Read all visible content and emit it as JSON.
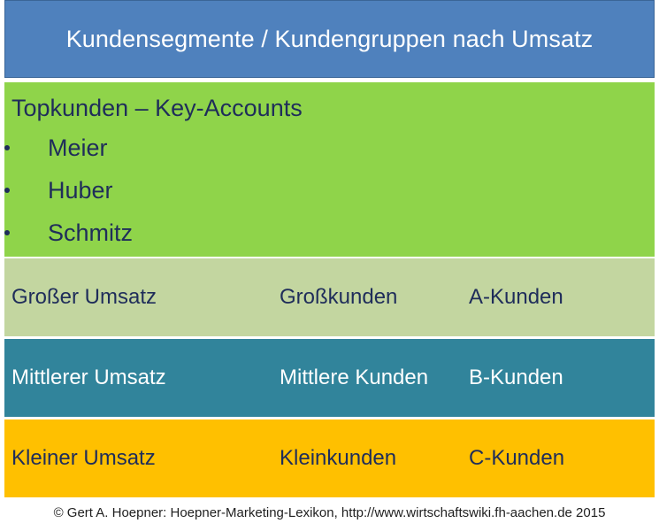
{
  "header": {
    "title": "Kundensegmente / Kundengruppen nach Umsatz"
  },
  "top_segment": {
    "title": "Topkunden – Key-Accounts",
    "items": [
      "Meier",
      "Huber",
      "Schmitz"
    ]
  },
  "rows": [
    {
      "revenue": "Großer Umsatz",
      "group": "Großkunden",
      "class": "A-Kunden"
    },
    {
      "revenue": "Mittlerer Umsatz",
      "group": "Mittlere Kunden",
      "class": "B-Kunden"
    },
    {
      "revenue": "Kleiner Umsatz",
      "group": "Kleinkunden",
      "class": "C-Kunden"
    }
  ],
  "footer": {
    "copyright": "© Gert A. Hoepner: Hoepner-Marketing-Lexikon, http://www.wirtschaftswiki.fh-aachen.de 2015"
  },
  "colors": {
    "header": "#4f81bd",
    "top_segment": "#8fd44a",
    "row_a": "#c3d6a0",
    "row_b": "#31849b",
    "row_c": "#ffc000",
    "dark_text": "#1f2d5a"
  }
}
